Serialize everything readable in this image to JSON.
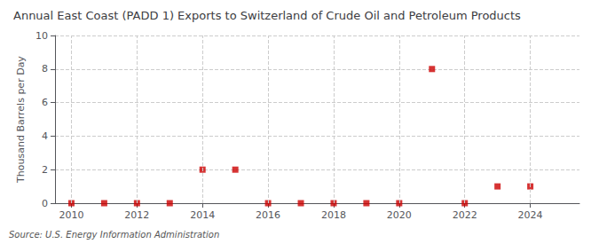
{
  "chart_data": {
    "type": "scatter",
    "title": "Annual East Coast (PADD 1) Exports to Switzerland of Crude Oil and Petroleum Products",
    "ylabel": "Thousand Barrels per Day",
    "annotation": "Source: U.S. Energy Information Administration",
    "x": [
      2010,
      2011,
      2012,
      2013,
      2014,
      2015,
      2016,
      2017,
      2018,
      2019,
      2020,
      2021,
      2022,
      2023,
      2024
    ],
    "values": [
      0,
      0,
      0,
      0,
      2,
      2,
      0,
      0,
      0,
      0,
      0,
      8,
      0,
      1,
      1
    ],
    "color": "#cc0000",
    "marker": "square",
    "xlim": [
      2009.5,
      2025.5
    ],
    "xticks": [
      2010,
      2012,
      2014,
      2016,
      2018,
      2020,
      2022,
      2024
    ],
    "ylim": [
      0,
      10
    ],
    "yticks": [
      0,
      2,
      4,
      6,
      8,
      10
    ],
    "grid": true
  }
}
